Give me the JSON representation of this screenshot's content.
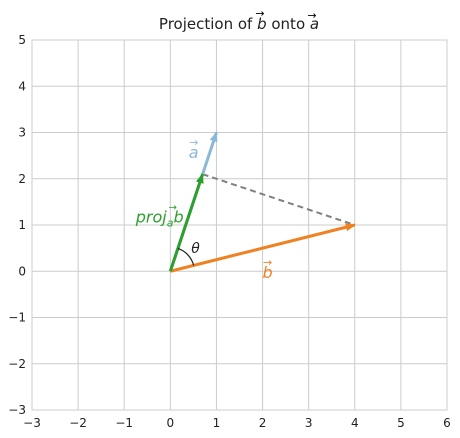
{
  "chart_data": {
    "type": "vector",
    "title": {
      "prefix": "Projection of ",
      "b_letter": "b",
      "middle": " onto ",
      "a_letter": "a",
      "arrow_mark": "→"
    },
    "xlim": [
      -3,
      6
    ],
    "ylim": [
      -3,
      5
    ],
    "xticks": [
      -3,
      -2,
      -1,
      0,
      1,
      2,
      3,
      4,
      5,
      6
    ],
    "yticks": [
      -3,
      -2,
      -1,
      0,
      1,
      2,
      3,
      4,
      5
    ],
    "xtick_labels": [
      "−3",
      "−2",
      "−1",
      "0",
      "1",
      "2",
      "3",
      "4",
      "5",
      "6"
    ],
    "ytick_labels": [
      "−3",
      "−2",
      "−1",
      "0",
      "1",
      "2",
      "3",
      "4",
      "5"
    ],
    "grid": true,
    "origin": [
      0,
      0
    ],
    "vectors": [
      {
        "id": "a",
        "label": "a",
        "x": 1,
        "y": 3,
        "color": "#8cb8d8"
      },
      {
        "id": "b",
        "label": "b",
        "x": 4,
        "y": 1,
        "color": "#f08020"
      },
      {
        "id": "proj",
        "label_main": "proj",
        "label_sub": "a",
        "label_end": "b",
        "x": 0.7,
        "y": 2.1,
        "color": "#2ca02c"
      }
    ],
    "dashed_segment": {
      "from": [
        0.7,
        2.1
      ],
      "to": [
        4,
        1
      ],
      "color": "#808080"
    },
    "angle": {
      "label": "θ"
    }
  }
}
